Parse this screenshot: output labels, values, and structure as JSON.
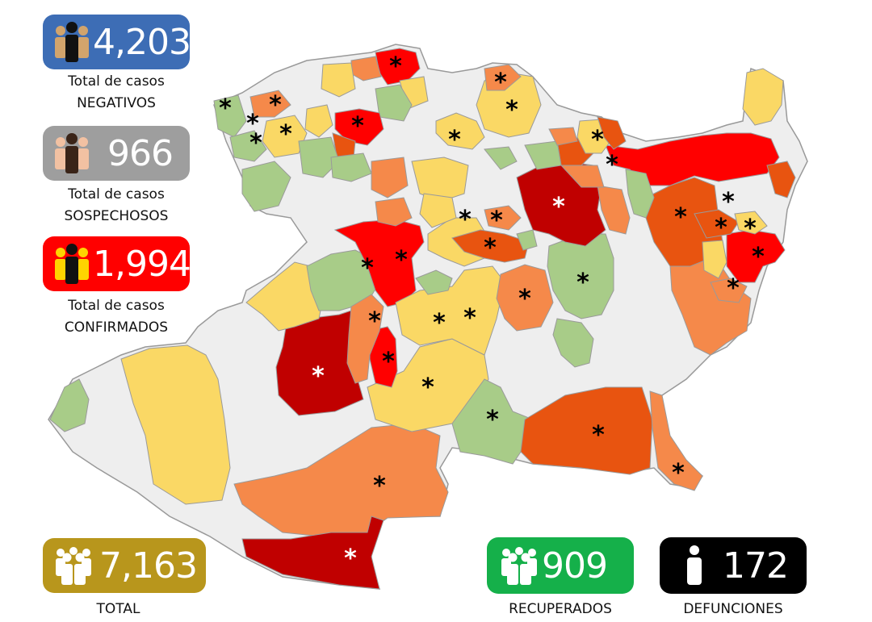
{
  "stats": {
    "negativos": {
      "value": "4,203",
      "line1": "Total de casos",
      "line2": "NEGATIVOS",
      "color": "#3d6db5",
      "icon": "people-icon"
    },
    "sospechosos": {
      "value": "966",
      "line1": "Total de casos",
      "line2": "SOSPECHOSOS",
      "color": "#9e9e9e",
      "icon": "people-icon"
    },
    "confirmados": {
      "value": "1,994",
      "line1": "Total de casos",
      "line2": "CONFIRMADOS",
      "color": "#ff0000",
      "icon": "people-icon"
    },
    "total": {
      "value": "7,163",
      "label": "TOTAL",
      "color": "#b8961c",
      "icon": "crowd-icon"
    },
    "recuperados": {
      "value": "909",
      "label": "RECUPERADOS",
      "color": "#15b04a",
      "icon": "crowd-icon"
    },
    "defunciones": {
      "value": "172",
      "label": "DEFUNCIONES",
      "color": "#000000",
      "icon": "person-icon"
    }
  },
  "map": {
    "marker_symbol": "*",
    "legend_colors": {
      "none": "#eeeeee",
      "green": "#a8cc88",
      "yellow": "#fad865",
      "light_orange": "#f5894a",
      "orange": "#e85410",
      "red": "#ff0000",
      "dark_red": "#c00000"
    }
  }
}
